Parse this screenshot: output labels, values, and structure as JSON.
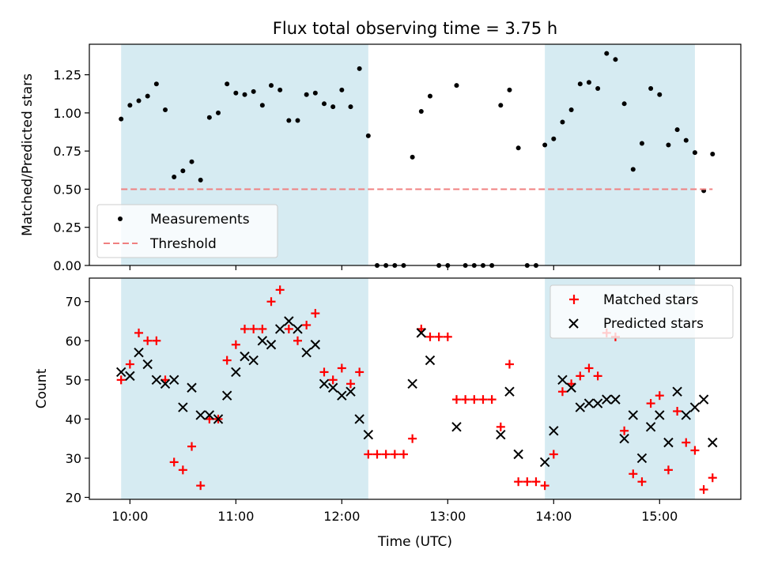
{
  "chart_data": [
    {
      "type": "scatter",
      "title": "Flux total observing time = 3.75 h",
      "xlabel": "",
      "ylabel": "Matched/Predicted stars",
      "ylim": [
        0,
        1.45
      ],
      "yticks": [
        "0.00",
        "0.25",
        "0.50",
        "0.75",
        "1.00",
        "1.25"
      ],
      "shaded_intervals": [
        [
          "09:55",
          "12:15"
        ],
        [
          "13:55",
          "15:20"
        ]
      ],
      "series": [
        {
          "name": "Measurements",
          "marker": "dot",
          "color": "#000000",
          "points": [
            [
              "09:55",
              0.96
            ],
            [
              "10:00",
              1.05
            ],
            [
              "10:05",
              1.08
            ],
            [
              "10:10",
              1.11
            ],
            [
              "10:15",
              1.19
            ],
            [
              "10:20",
              1.02
            ],
            [
              "10:25",
              0.58
            ],
            [
              "10:30",
              0.62
            ],
            [
              "10:35",
              0.68
            ],
            [
              "10:40",
              0.56
            ],
            [
              "10:45",
              0.97
            ],
            [
              "10:50",
              1.0
            ],
            [
              "10:55",
              1.19
            ],
            [
              "11:00",
              1.13
            ],
            [
              "11:05",
              1.12
            ],
            [
              "11:10",
              1.14
            ],
            [
              "11:15",
              1.05
            ],
            [
              "11:20",
              1.18
            ],
            [
              "11:25",
              1.15
            ],
            [
              "11:30",
              0.95
            ],
            [
              "11:35",
              0.95
            ],
            [
              "11:40",
              1.12
            ],
            [
              "11:45",
              1.13
            ],
            [
              "11:50",
              1.06
            ],
            [
              "11:55",
              1.04
            ],
            [
              "12:00",
              1.15
            ],
            [
              "12:05",
              1.04
            ],
            [
              "12:10",
              1.29
            ],
            [
              "12:15",
              0.85
            ],
            [
              "12:20",
              0.0
            ],
            [
              "12:25",
              0.0
            ],
            [
              "12:30",
              0.0
            ],
            [
              "12:35",
              0.0
            ],
            [
              "12:40",
              0.71
            ],
            [
              "12:45",
              1.01
            ],
            [
              "12:50",
              1.11
            ],
            [
              "12:55",
              0.0
            ],
            [
              "13:00",
              0.0
            ],
            [
              "13:05",
              1.18
            ],
            [
              "13:10",
              0.0
            ],
            [
              "13:15",
              0.0
            ],
            [
              "13:20",
              0.0
            ],
            [
              "13:25",
              0.0
            ],
            [
              "13:30",
              1.05
            ],
            [
              "13:35",
              1.15
            ],
            [
              "13:40",
              0.77
            ],
            [
              "13:45",
              0.0
            ],
            [
              "13:50",
              0.0
            ],
            [
              "13:55",
              0.79
            ],
            [
              "14:00",
              0.83
            ],
            [
              "14:05",
              0.94
            ],
            [
              "14:10",
              1.02
            ],
            [
              "14:15",
              1.19
            ],
            [
              "14:20",
              1.2
            ],
            [
              "14:25",
              1.16
            ],
            [
              "14:30",
              1.39
            ],
            [
              "14:35",
              1.35
            ],
            [
              "14:40",
              1.06
            ],
            [
              "14:45",
              0.63
            ],
            [
              "14:50",
              0.8
            ],
            [
              "14:55",
              1.16
            ],
            [
              "15:00",
              1.12
            ],
            [
              "15:05",
              0.79
            ],
            [
              "15:10",
              0.89
            ],
            [
              "15:15",
              0.82
            ],
            [
              "15:20",
              0.74
            ],
            [
              "15:25",
              0.49
            ],
            [
              "15:30",
              0.73
            ]
          ]
        },
        {
          "name": "Threshold",
          "marker": "dashed-line",
          "color": "#f08080",
          "points": [
            [
              "09:55",
              0.5
            ],
            [
              "15:30",
              0.5
            ]
          ]
        }
      ],
      "legend": "lower-left"
    },
    {
      "type": "scatter",
      "title": "",
      "xlabel": "Time (UTC)",
      "ylabel": "Count",
      "ylim": [
        19.5,
        76
      ],
      "yticks": [
        "20",
        "30",
        "40",
        "50",
        "60",
        "70"
      ],
      "xticks": [
        "10:00",
        "11:00",
        "12:00",
        "13:00",
        "14:00",
        "15:00"
      ],
      "xlim": [
        "09:37",
        "15:46"
      ],
      "shaded_intervals": [
        [
          "09:55",
          "12:15"
        ],
        [
          "13:55",
          "15:20"
        ]
      ],
      "series": [
        {
          "name": "Matched stars",
          "marker": "plus",
          "color": "#ff0000",
          "points": [
            [
              "09:55",
              50
            ],
            [
              "10:00",
              54
            ],
            [
              "10:05",
              62
            ],
            [
              "10:10",
              60
            ],
            [
              "10:15",
              60
            ],
            [
              "10:20",
              50
            ],
            [
              "10:25",
              29
            ],
            [
              "10:30",
              27
            ],
            [
              "10:35",
              33
            ],
            [
              "10:40",
              23
            ],
            [
              "10:45",
              40
            ],
            [
              "10:50",
              40
            ],
            [
              "10:55",
              55
            ],
            [
              "11:00",
              59
            ],
            [
              "11:05",
              63
            ],
            [
              "11:10",
              63
            ],
            [
              "11:15",
              63
            ],
            [
              "11:20",
              70
            ],
            [
              "11:25",
              73
            ],
            [
              "11:30",
              63
            ],
            [
              "11:35",
              60
            ],
            [
              "11:40",
              64
            ],
            [
              "11:45",
              67
            ],
            [
              "11:50",
              52
            ],
            [
              "11:55",
              50
            ],
            [
              "12:00",
              53
            ],
            [
              "12:05",
              49
            ],
            [
              "12:10",
              52
            ],
            [
              "12:15",
              31
            ],
            [
              "12:20",
              31
            ],
            [
              "12:25",
              31
            ],
            [
              "12:30",
              31
            ],
            [
              "12:35",
              31
            ],
            [
              "12:40",
              35
            ],
            [
              "12:45",
              63
            ],
            [
              "12:50",
              61
            ],
            [
              "12:55",
              61
            ],
            [
              "13:00",
              61
            ],
            [
              "13:05",
              45
            ],
            [
              "13:10",
              45
            ],
            [
              "13:15",
              45
            ],
            [
              "13:20",
              45
            ],
            [
              "13:25",
              45
            ],
            [
              "13:30",
              38
            ],
            [
              "13:35",
              54
            ],
            [
              "13:40",
              24
            ],
            [
              "13:45",
              24
            ],
            [
              "13:50",
              24
            ],
            [
              "13:55",
              23
            ],
            [
              "14:00",
              31
            ],
            [
              "14:05",
              47
            ],
            [
              "14:10",
              49
            ],
            [
              "14:15",
              51
            ],
            [
              "14:20",
              53
            ],
            [
              "14:25",
              51
            ],
            [
              "14:30",
              62
            ],
            [
              "14:35",
              61
            ],
            [
              "14:40",
              37
            ],
            [
              "14:45",
              26
            ],
            [
              "14:50",
              24
            ],
            [
              "14:55",
              44
            ],
            [
              "15:00",
              46
            ],
            [
              "15:05",
              27
            ],
            [
              "15:10",
              42
            ],
            [
              "15:15",
              34
            ],
            [
              "15:20",
              32
            ],
            [
              "15:25",
              22
            ],
            [
              "15:30",
              25
            ]
          ]
        },
        {
          "name": "Predicted stars",
          "marker": "x",
          "color": "#000000",
          "points": [
            [
              "09:55",
              52
            ],
            [
              "10:00",
              51
            ],
            [
              "10:05",
              57
            ],
            [
              "10:10",
              54
            ],
            [
              "10:15",
              50
            ],
            [
              "10:20",
              49
            ],
            [
              "10:25",
              50
            ],
            [
              "10:30",
              43
            ],
            [
              "10:35",
              48
            ],
            [
              "10:40",
              41
            ],
            [
              "10:45",
              41
            ],
            [
              "10:50",
              40
            ],
            [
              "10:55",
              46
            ],
            [
              "11:00",
              52
            ],
            [
              "11:05",
              56
            ],
            [
              "11:10",
              55
            ],
            [
              "11:15",
              60
            ],
            [
              "11:20",
              59
            ],
            [
              "11:25",
              63
            ],
            [
              "11:30",
              65
            ],
            [
              "11:35",
              63
            ],
            [
              "11:40",
              57
            ],
            [
              "11:45",
              59
            ],
            [
              "11:50",
              49
            ],
            [
              "11:55",
              48
            ],
            [
              "12:00",
              46
            ],
            [
              "12:05",
              47
            ],
            [
              "12:10",
              40
            ],
            [
              "12:15",
              36
            ],
            [
              "12:40",
              49
            ],
            [
              "12:45",
              62
            ],
            [
              "12:50",
              55
            ],
            [
              "13:05",
              38
            ],
            [
              "13:30",
              36
            ],
            [
              "13:35",
              47
            ],
            [
              "13:40",
              31
            ],
            [
              "13:55",
              29
            ],
            [
              "14:00",
              37
            ],
            [
              "14:05",
              50
            ],
            [
              "14:10",
              48
            ],
            [
              "14:15",
              43
            ],
            [
              "14:20",
              44
            ],
            [
              "14:25",
              44
            ],
            [
              "14:30",
              45
            ],
            [
              "14:35",
              45
            ],
            [
              "14:40",
              35
            ],
            [
              "14:45",
              41
            ],
            [
              "14:50",
              30
            ],
            [
              "14:55",
              38
            ],
            [
              "15:00",
              41
            ],
            [
              "15:05",
              34
            ],
            [
              "15:10",
              47
            ],
            [
              "15:15",
              41
            ],
            [
              "15:20",
              43
            ],
            [
              "15:25",
              45
            ],
            [
              "15:30",
              34
            ]
          ]
        }
      ],
      "legend": "upper-right"
    }
  ],
  "colors": {
    "shade": "#add8e6",
    "matched": "#ff0000",
    "predicted": "#000000",
    "threshold": "#f08080"
  }
}
